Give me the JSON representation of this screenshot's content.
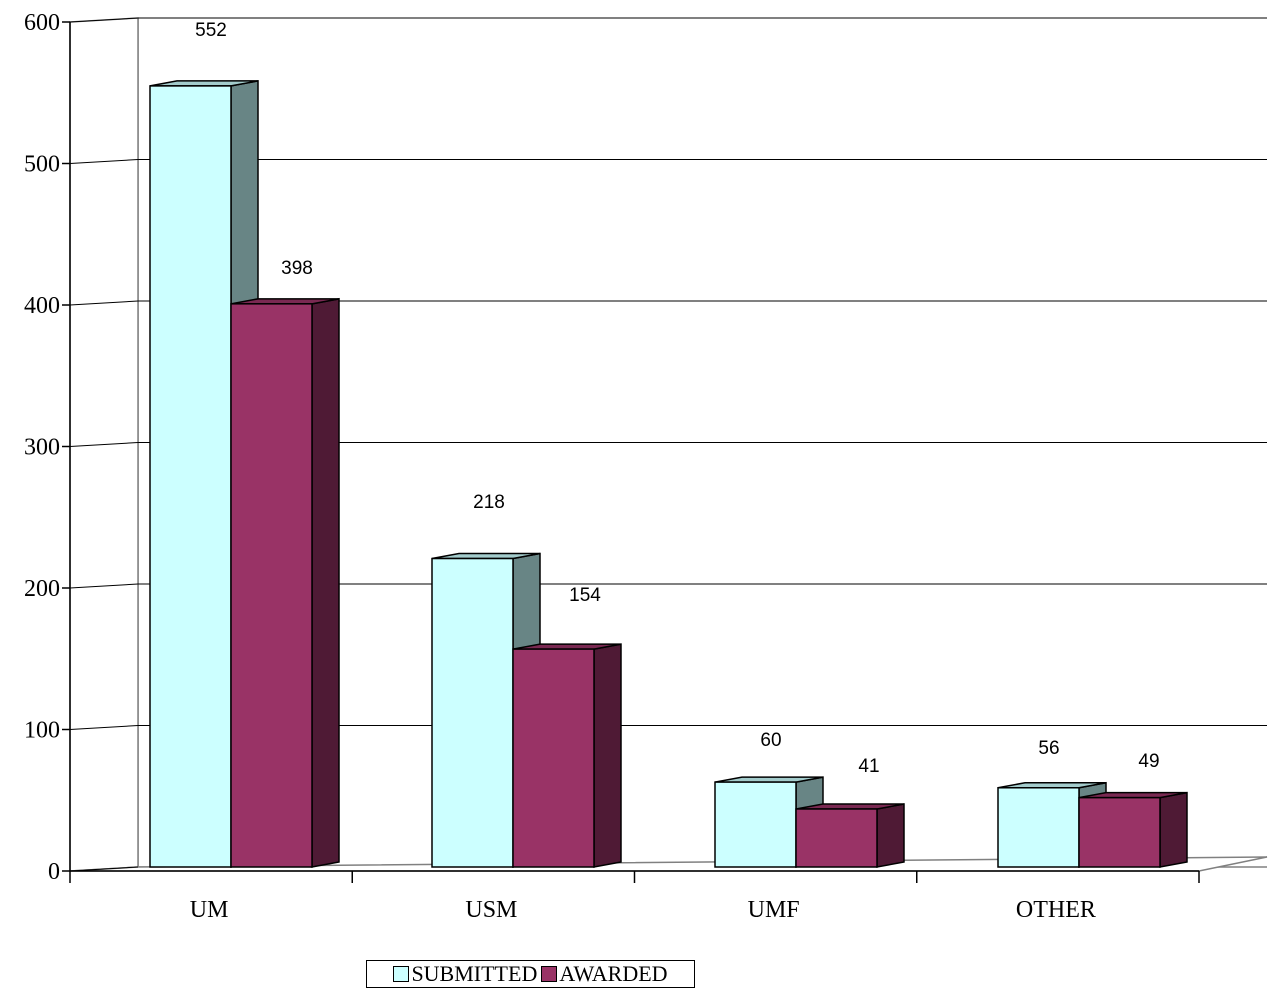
{
  "chart_data": {
    "type": "bar",
    "categories": [
      "UM",
      "USM",
      "UMF",
      "OTHER"
    ],
    "series": [
      {
        "name": "SUBMITTED",
        "values": [
          552,
          218,
          60,
          56
        ]
      },
      {
        "name": "AWARDED",
        "values": [
          398,
          154,
          41,
          49
        ]
      }
    ],
    "y_ticks": [
      "0",
      "100",
      "200",
      "300",
      "400",
      "500",
      "600"
    ],
    "ylim": [
      0,
      600
    ],
    "grid": true,
    "three_d": true,
    "legend_position": "bottom"
  },
  "colors": {
    "submitted_front": "#ccffff",
    "submitted_side": "#688585",
    "submitted_top": "#a3cccc",
    "awarded_front": "#993366",
    "awarded_side": "#4f1a35",
    "awarded_top": "#7a2952"
  },
  "legend": {
    "submitted_label": "SUBMITTED",
    "awarded_label": "AWARDED"
  }
}
